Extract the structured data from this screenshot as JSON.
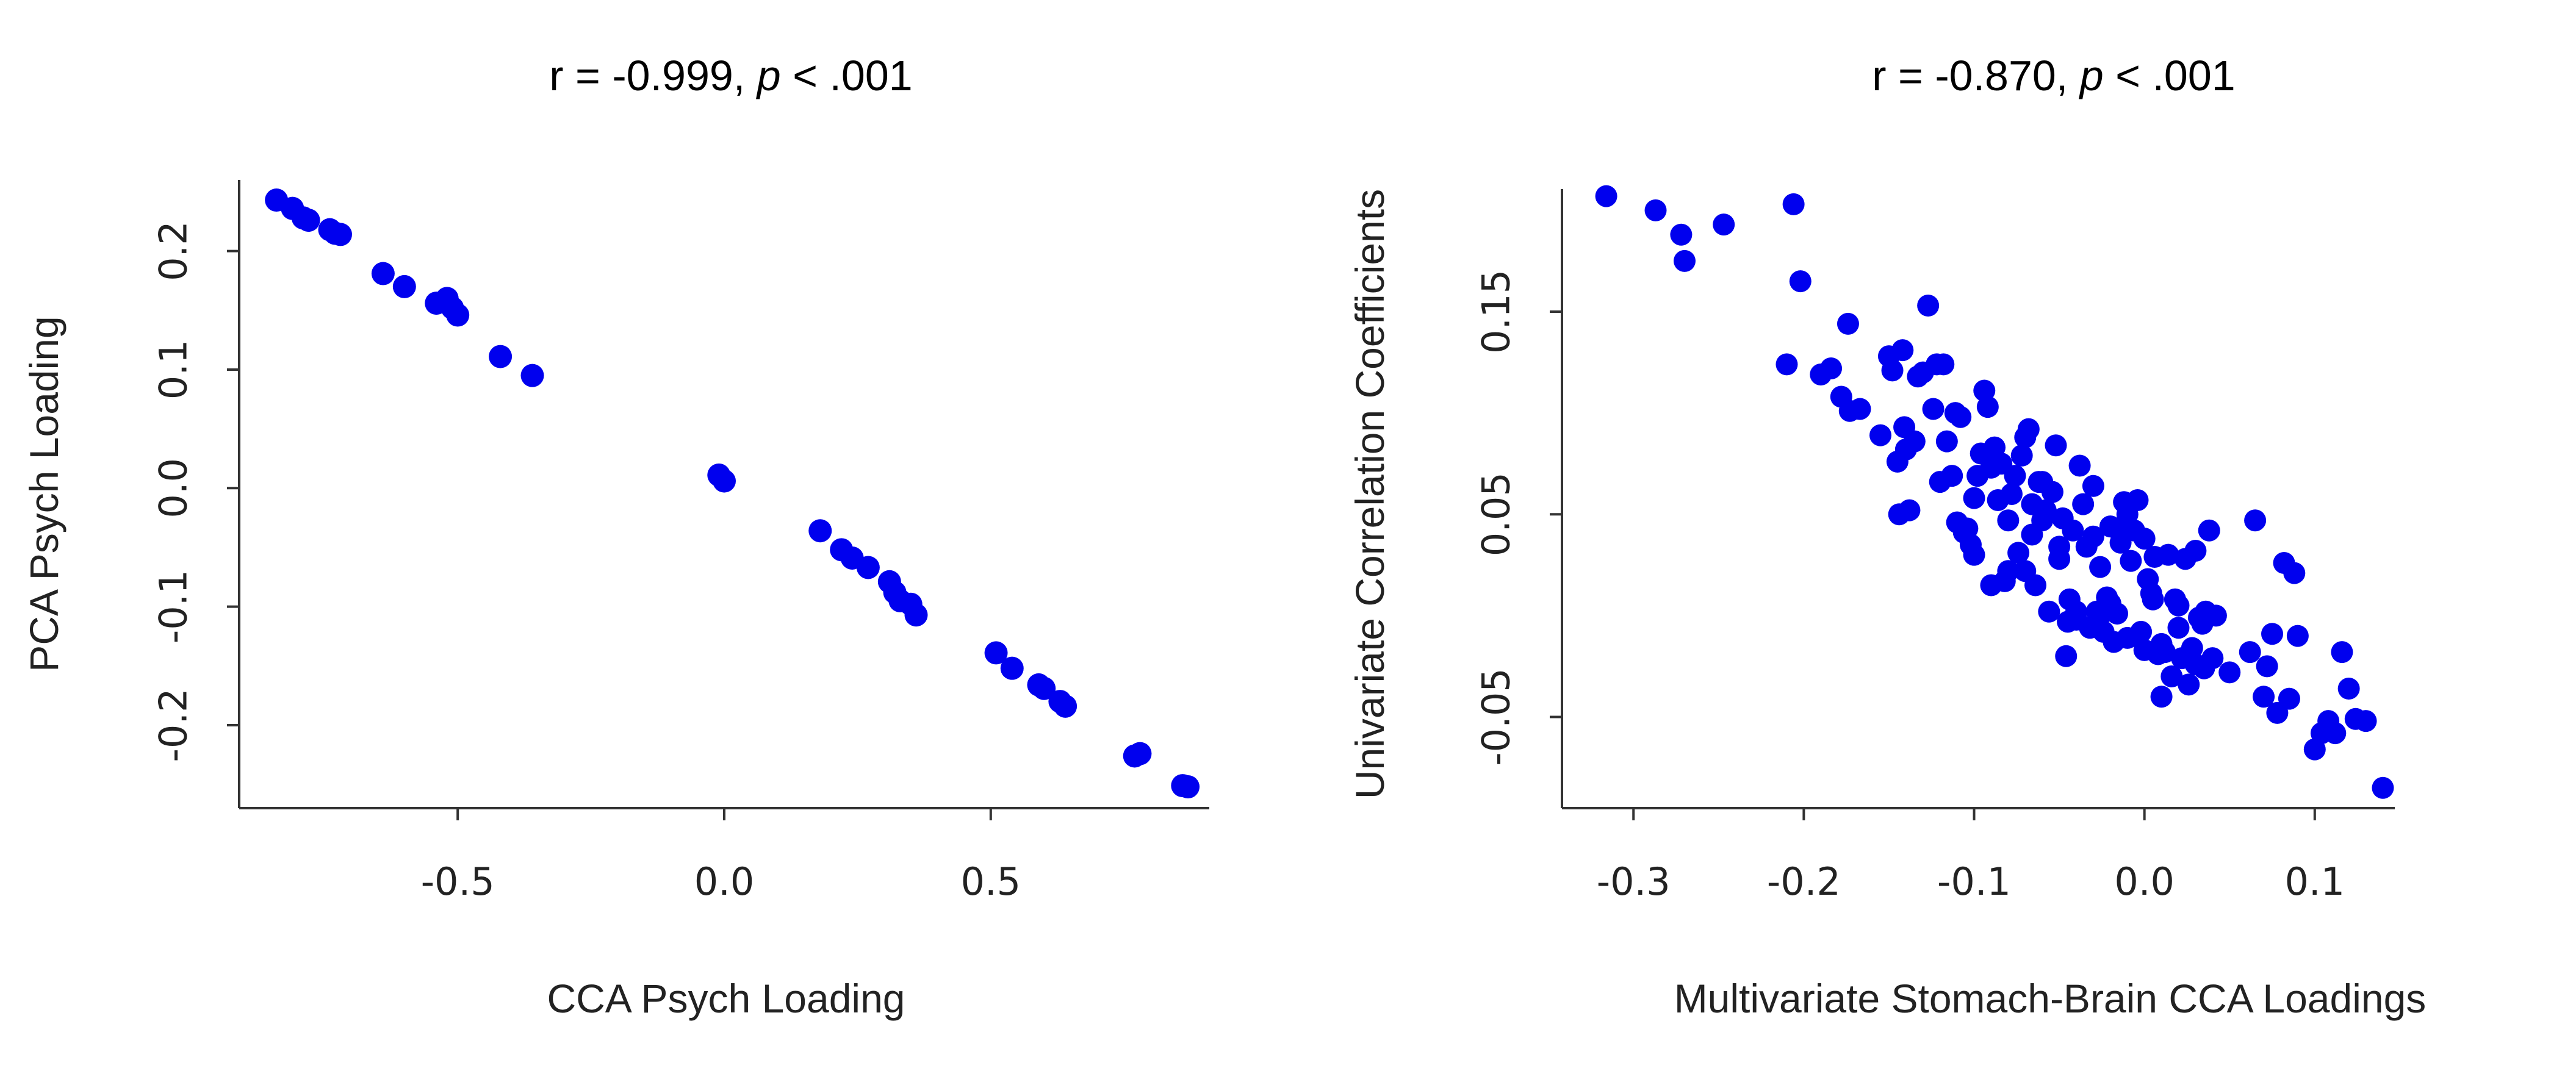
{
  "chart_data": [
    {
      "type": "scatter",
      "title_prefix": "r = -0.999, ",
      "title_p": "p",
      "title_suffix": " < .001",
      "xlabel": "CCA Psych Loading",
      "ylabel": "PCA Psych Loading",
      "xlim": [
        -0.91,
        0.91
      ],
      "ylim": [
        -0.27,
        0.26
      ],
      "xticks": [
        -0.5,
        0.0,
        0.5
      ],
      "xtick_labels": [
        "-0.5",
        "0.0",
        "0.5"
      ],
      "yticks": [
        -0.2,
        -0.1,
        0.0,
        0.1,
        0.2
      ],
      "ytick_labels": [
        "-0.2",
        "-0.1",
        "0.0",
        "0.1",
        "0.2"
      ],
      "color": "#0000ee",
      "x": [
        -0.84,
        -0.81,
        -0.79,
        -0.78,
        -0.74,
        -0.73,
        -0.72,
        -0.64,
        -0.6,
        -0.54,
        -0.52,
        -0.51,
        -0.5,
        -0.42,
        -0.36,
        -0.01,
        0.0,
        0.18,
        0.22,
        0.24,
        0.27,
        0.31,
        0.32,
        0.33,
        0.35,
        0.36,
        0.51,
        0.54,
        0.59,
        0.6,
        0.63,
        0.64,
        0.77,
        0.78,
        0.86,
        0.87
      ],
      "y": [
        0.243,
        0.236,
        0.228,
        0.226,
        0.218,
        0.215,
        0.214,
        0.181,
        0.17,
        0.156,
        0.16,
        0.152,
        0.146,
        0.111,
        0.095,
        0.011,
        0.006,
        -0.036,
        -0.052,
        -0.059,
        -0.067,
        -0.079,
        -0.088,
        -0.095,
        -0.098,
        -0.107,
        -0.139,
        -0.152,
        -0.166,
        -0.169,
        -0.18,
        -0.184,
        -0.226,
        -0.224,
        -0.251,
        -0.252
      ]
    },
    {
      "type": "scatter",
      "title_prefix": "r = -0.870, ",
      "title_p": "p",
      "title_suffix": " < .001",
      "xlabel": "Multivariate Stomach-Brain CCA Loadings",
      "ylabel": "Univariate Correlation Coefficients",
      "xlim": [
        -0.342,
        0.147
      ],
      "ylim": [
        -0.095,
        0.215
      ],
      "xticks": [
        -0.3,
        -0.2,
        -0.1,
        0.0,
        0.1
      ],
      "xtick_labels": [
        "-0.3",
        "-0.2",
        "-0.1",
        "0.0",
        "0.1"
      ],
      "yticks": [
        -0.05,
        0.05,
        0.15
      ],
      "ytick_labels": [
        "-0.05",
        "0.05",
        "0.15"
      ],
      "color": "#0000ee",
      "x": [
        -0.316,
        -0.287,
        -0.272,
        -0.27,
        -0.247,
        -0.206,
        -0.202,
        -0.21,
        -0.19,
        -0.184,
        -0.178,
        -0.174,
        -0.173,
        -0.167,
        -0.155,
        -0.15,
        -0.148,
        -0.145,
        -0.144,
        -0.141,
        -0.138,
        -0.135,
        -0.133,
        -0.14,
        -0.142,
        -0.13,
        -0.127,
        -0.124,
        -0.122,
        -0.12,
        -0.118,
        -0.116,
        -0.113,
        -0.111,
        -0.11,
        -0.108,
        -0.106,
        -0.104,
        -0.102,
        -0.1,
        -0.098,
        -0.096,
        -0.094,
        -0.092,
        -0.09,
        -0.088,
        -0.086,
        -0.084,
        -0.082,
        -0.08,
        -0.078,
        -0.076,
        -0.074,
        -0.072,
        -0.07,
        -0.068,
        -0.066,
        -0.064,
        -0.062,
        -0.06,
        -0.058,
        -0.056,
        -0.054,
        -0.052,
        -0.05,
        -0.048,
        -0.046,
        -0.044,
        -0.042,
        -0.04,
        -0.038,
        -0.036,
        -0.034,
        -0.032,
        -0.03,
        -0.028,
        -0.026,
        -0.024,
        -0.022,
        -0.02,
        -0.018,
        -0.016,
        -0.014,
        -0.012,
        -0.01,
        -0.008,
        -0.006,
        -0.004,
        -0.002,
        0.0,
        0.002,
        0.004,
        0.006,
        0.008,
        0.01,
        0.012,
        0.014,
        0.016,
        0.018,
        0.02,
        0.022,
        0.024,
        0.026,
        0.028,
        0.03,
        0.032,
        0.034,
        0.036,
        0.038,
        0.04,
        0.042,
        0.05,
        0.062,
        0.065,
        0.07,
        0.072,
        0.075,
        0.078,
        0.082,
        0.085,
        0.088,
        0.09,
        0.1,
        0.104,
        0.108,
        0.112,
        0.116,
        0.12,
        0.124,
        0.13,
        0.14,
        -0.09,
        -0.1,
        -0.06,
        -0.05,
        -0.07,
        -0.03,
        -0.02,
        -0.01,
        0.01,
        0.02,
        -0.08,
        -0.04,
        0.0,
        0.03,
        0.035,
        -0.066,
        -0.045,
        -0.025,
        -0.015,
        0.005
      ],
      "y": [
        0.207,
        0.2,
        0.188,
        0.175,
        0.193,
        0.203,
        0.165,
        0.124,
        0.119,
        0.122,
        0.108,
        0.144,
        0.101,
        0.102,
        0.089,
        0.128,
        0.121,
        0.076,
        0.05,
        0.093,
        0.052,
        0.086,
        0.118,
        0.082,
        0.131,
        0.12,
        0.153,
        0.102,
        0.124,
        0.066,
        0.124,
        0.086,
        0.069,
        0.1,
        0.046,
        0.098,
        0.041,
        0.043,
        0.035,
        0.058,
        0.069,
        0.08,
        0.111,
        0.103,
        0.073,
        0.083,
        0.057,
        0.075,
        0.017,
        0.047,
        0.06,
        0.069,
        0.031,
        0.079,
        0.088,
        0.092,
        0.04,
        0.015,
        0.066,
        0.047,
        0.052,
        0.002,
        0.061,
        0.084,
        0.028,
        0.048,
        -0.02,
        0.008,
        0.042,
        -0.002,
        0.074,
        0.055,
        0.034,
        -0.006,
        0.064,
        0.002,
        0.024,
        -0.008,
        0.009,
        0.044,
        -0.013,
        0.001,
        0.036,
        0.056,
        0.05,
        0.027,
        0.042,
        0.057,
        -0.008,
        0.038,
        0.018,
        0.011,
        0.029,
        -0.019,
        -0.04,
        -0.018,
        0.03,
        -0.03,
        0.008,
        0.005,
        -0.021,
        0.028,
        -0.034,
        -0.016,
        0.032,
        -0.001,
        -0.004,
        0.002,
        0.042,
        -0.021,
        0.0,
        -0.028,
        -0.018,
        0.047,
        -0.04,
        -0.025,
        -0.009,
        -0.048,
        0.026,
        -0.041,
        0.021,
        -0.01,
        -0.066,
        -0.058,
        -0.052,
        -0.058,
        -0.018,
        -0.036,
        -0.051,
        -0.052,
        -0.085,
        0.015,
        0.03,
        0.066,
        0.034,
        0.022,
        0.039,
        0.006,
        -0.011,
        -0.014,
        -0.006,
        0.022,
        0.002,
        -0.017,
        -0.024,
        -0.026,
        0.055,
        -0.003,
        0.001,
        0.042,
        0.008
      ]
    }
  ]
}
